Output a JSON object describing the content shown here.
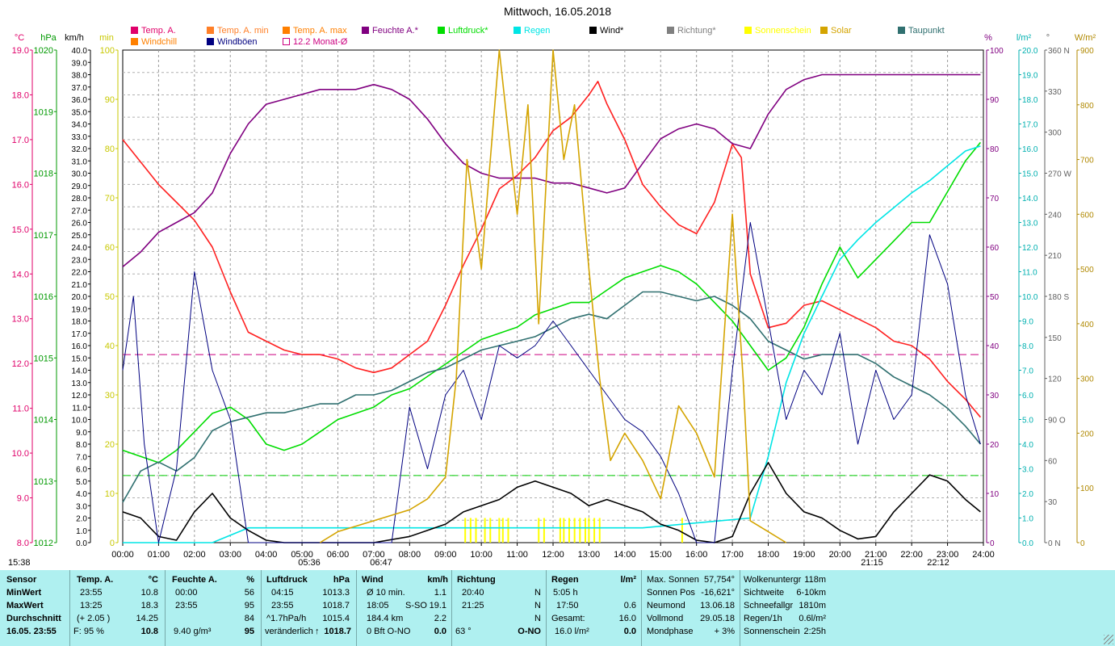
{
  "title": "Mittwoch, 16.05.2018",
  "colors": {
    "temp": "#ff2020",
    "temp_min": "#ff7f27",
    "temp_max": "#ff7f00",
    "windchill": "#ff8000",
    "humidity": "#800080",
    "pressure": "#00dd00",
    "rain": "#00e5e5",
    "wind": "#000000",
    "gust": "#000080",
    "direction": "#808080",
    "sunshine": "#ffff00",
    "solar": "#d4a400",
    "dewpoint": "#307070",
    "monthly": "#cc0080"
  },
  "legend": [
    {
      "label": "Temp. A.",
      "color": "#e0006a",
      "style": "box"
    },
    {
      "label": "Temp. A. min",
      "color": "#ff7f27",
      "style": "box"
    },
    {
      "label": "Temp. A. max",
      "color": "#ff7f00",
      "style": "box"
    },
    {
      "label": "Feuchte A.*",
      "color": "#800080",
      "style": "box"
    },
    {
      "label": "Luftdruck*",
      "color": "#00dd00",
      "style": "box"
    },
    {
      "label": "Regen",
      "color": "#00e5e5",
      "style": "box"
    },
    {
      "label": "Wind*",
      "color": "#000000",
      "style": "box"
    },
    {
      "label": "Richtung*",
      "color": "#808080",
      "style": "box"
    },
    {
      "label": "Sonnenschein",
      "color": "#ffff00",
      "style": "box"
    },
    {
      "label": "Solar",
      "color": "#d4a400",
      "style": "box"
    },
    {
      "label": "Taupunkt",
      "color": "#307070",
      "style": "box"
    },
    {
      "label": "Windchill",
      "color": "#ff8000",
      "style": "box"
    },
    {
      "label": "Windböen",
      "color": "#000080",
      "style": "box"
    },
    {
      "label": "12.2 Monat-Ø",
      "color": "#cc0080",
      "style": "outline"
    }
  ],
  "axis_units": {
    "temp": "°C",
    "pressure": "hPa",
    "wind": "km/h",
    "sun_min": "min",
    "humidity": "%",
    "rain": "l/m²",
    "direction": "°",
    "solar": "W/m²"
  },
  "time_below": {
    "left": "15:38",
    "sunrise": "05:36",
    "twilight": "06:47",
    "evening": "21:15",
    "sunset": "22:12"
  },
  "chart_data": {
    "type": "line",
    "x_ticks": [
      "00:00",
      "01:00",
      "02:00",
      "03:00",
      "04:00",
      "05:00",
      "06:00",
      "07:00",
      "08:00",
      "09:00",
      "10:00",
      "11:00",
      "12:00",
      "13:00",
      "14:00",
      "15:00",
      "16:00",
      "17:00",
      "18:00",
      "19:00",
      "20:00",
      "21:00",
      "22:00",
      "23:00",
      "24:00"
    ],
    "axes": {
      "temp": {
        "min": 8,
        "max": 19,
        "step": 1,
        "ticks": [
          "8.0",
          "9.0",
          "10.0",
          "11.0",
          "12.0",
          "13.0",
          "14.0",
          "15.0",
          "16.0",
          "17.0",
          "18.0",
          "19.0"
        ]
      },
      "pressure": {
        "min": 1012,
        "max": 1020,
        "ticks": [
          "1012",
          "1013",
          "1014",
          "1015",
          "1016",
          "1017",
          "1018",
          "1019",
          "1020"
        ]
      },
      "wind": {
        "min": 0,
        "max": 40,
        "step": 1
      },
      "sun_min": {
        "min": 0,
        "max": 100,
        "ticks": [
          "0",
          "10",
          "20",
          "30",
          "40",
          "50",
          "60",
          "70",
          "80",
          "90",
          "100"
        ]
      },
      "humidity": {
        "min": 0,
        "max": 100,
        "ticks": [
          "0",
          "10",
          "20",
          "30",
          "40",
          "50",
          "60",
          "70",
          "80",
          "90",
          "100"
        ]
      },
      "rain": {
        "min": 0,
        "max": 20,
        "ticks": [
          "0.0",
          "1.0",
          "2.0",
          "3.0",
          "4.0",
          "5.0",
          "6.0",
          "7.0",
          "8.0",
          "9.0",
          "10.0",
          "11.0",
          "12.0",
          "13.0",
          "14.0",
          "15.0",
          "16.0",
          "17.0",
          "18.0",
          "19.0",
          "20.0"
        ]
      },
      "direction": {
        "min": 0,
        "max": 360,
        "ticks": [
          "0 N",
          "30",
          "60",
          "90 O",
          "120",
          "150",
          "180 S",
          "210",
          "240",
          "270 W",
          "300",
          "330",
          "360 N"
        ]
      },
      "solar": {
        "min": 0,
        "max": 900,
        "ticks": [
          "0",
          "100",
          "200",
          "300",
          "400",
          "500",
          "600",
          "700",
          "800",
          "900"
        ]
      }
    },
    "monthly_avg_temp": 12.2,
    "ref_line_temp": 9.5,
    "series": [
      {
        "name": "Temp. A.",
        "axis": "temp",
        "color": "#ff2020",
        "x": [
          0,
          0.5,
          1,
          1.5,
          2,
          2.5,
          3,
          3.5,
          4,
          4.5,
          5,
          5.5,
          6,
          6.5,
          7,
          7.5,
          8,
          8.5,
          9,
          9.5,
          10,
          10.5,
          11,
          11.5,
          12,
          12.5,
          13,
          13.25,
          13.5,
          14,
          14.5,
          15,
          15.5,
          16,
          16.5,
          17,
          17.25,
          17.5,
          18,
          18.5,
          19,
          19.5,
          20,
          20.5,
          21,
          21.5,
          22,
          22.5,
          23,
          23.5,
          23.92
        ],
        "y": [
          17.0,
          16.5,
          16.0,
          15.6,
          15.2,
          14.6,
          13.6,
          12.7,
          12.5,
          12.3,
          12.2,
          12.2,
          12.1,
          11.9,
          11.8,
          11.9,
          12.2,
          12.5,
          13.3,
          14.2,
          15.0,
          15.9,
          16.2,
          16.6,
          17.2,
          17.5,
          18.0,
          18.3,
          17.8,
          17.0,
          16.0,
          15.5,
          15.1,
          14.9,
          15.6,
          16.9,
          16.6,
          14.0,
          12.8,
          12.9,
          13.3,
          13.4,
          13.2,
          13.0,
          12.8,
          12.5,
          12.4,
          12.1,
          11.6,
          11.2,
          10.8
        ]
      },
      {
        "name": "Feuchte A.*",
        "axis": "humidity",
        "color": "#800080",
        "x": [
          0,
          0.5,
          1,
          1.5,
          2,
          2.5,
          3,
          3.5,
          4,
          4.5,
          5,
          5.5,
          6,
          6.5,
          7,
          7.5,
          8,
          8.5,
          9,
          9.5,
          10,
          10.5,
          11,
          11.5,
          12,
          12.5,
          13,
          13.5,
          14,
          14.5,
          15,
          15.5,
          16,
          16.5,
          17,
          17.5,
          18,
          18.5,
          19,
          19.5,
          20,
          21,
          22,
          23,
          23.92
        ],
        "y": [
          56,
          59,
          63,
          65,
          67,
          71,
          79,
          85,
          89,
          90,
          91,
          92,
          92,
          92,
          93,
          92,
          90,
          86,
          81,
          77,
          75,
          74,
          74,
          74,
          73,
          73,
          72,
          71,
          72,
          77,
          82,
          84,
          85,
          84,
          81,
          80,
          87,
          92,
          94,
          95,
          95,
          95,
          95,
          95,
          95
        ]
      },
      {
        "name": "Luftdruck*",
        "axis": "pressure",
        "color": "#00dd00",
        "x": [
          0,
          0.5,
          1,
          1.5,
          2,
          2.5,
          3,
          3.5,
          4,
          4.5,
          5,
          5.5,
          6,
          6.5,
          7,
          7.5,
          8,
          8.5,
          9,
          9.5,
          10,
          10.5,
          11,
          11.5,
          12,
          12.5,
          13,
          13.5,
          14,
          14.5,
          15,
          15.5,
          16,
          16.5,
          17,
          17.5,
          18,
          18.5,
          19,
          19.5,
          20,
          20.5,
          21,
          21.5,
          22,
          22.5,
          23,
          23.5,
          23.92
        ],
        "y": [
          1013.5,
          1013.4,
          1013.3,
          1013.5,
          1013.8,
          1014.1,
          1014.2,
          1014.0,
          1013.6,
          1013.5,
          1013.6,
          1013.8,
          1014.0,
          1014.1,
          1014.2,
          1014.4,
          1014.5,
          1014.7,
          1014.9,
          1015.1,
          1015.3,
          1015.4,
          1015.5,
          1015.7,
          1015.8,
          1015.9,
          1015.9,
          1016.1,
          1016.3,
          1016.4,
          1016.5,
          1016.4,
          1016.2,
          1015.9,
          1015.6,
          1015.2,
          1014.8,
          1015.0,
          1015.5,
          1016.2,
          1016.8,
          1016.3,
          1016.6,
          1016.9,
          1017.2,
          1017.2,
          1017.7,
          1018.2,
          1018.5
        ]
      },
      {
        "name": "Taupunkt",
        "axis": "temp",
        "color": "#307070",
        "x": [
          0,
          0.5,
          1,
          1.5,
          2,
          2.5,
          3,
          3.5,
          4,
          4.5,
          5,
          5.5,
          6,
          6.5,
          7,
          7.5,
          8,
          8.5,
          9,
          9.5,
          10,
          10.5,
          11,
          11.5,
          12,
          12.5,
          13,
          13.5,
          14,
          14.5,
          15,
          15.5,
          16,
          16.5,
          17,
          17.5,
          18,
          18.5,
          19,
          19.5,
          20,
          20.5,
          21,
          21.5,
          22,
          22.5,
          23,
          23.5,
          23.92
        ],
        "y": [
          8.9,
          9.6,
          9.8,
          9.6,
          9.9,
          10.5,
          10.7,
          10.8,
          10.9,
          10.9,
          11.0,
          11.1,
          11.1,
          11.3,
          11.3,
          11.4,
          11.6,
          11.8,
          11.9,
          12.1,
          12.3,
          12.4,
          12.5,
          12.6,
          12.8,
          13.0,
          13.1,
          13.0,
          13.3,
          13.6,
          13.6,
          13.5,
          13.4,
          13.5,
          13.3,
          13.0,
          12.5,
          12.3,
          12.1,
          12.2,
          12.2,
          12.2,
          12.0,
          11.7,
          11.5,
          11.3,
          11.0,
          10.6,
          10.2
        ]
      },
      {
        "name": "Regen",
        "axis": "rain",
        "color": "#00e5e5",
        "x": [
          0,
          2.5,
          3.5,
          12,
          14.5,
          17.5,
          18,
          18.5,
          19,
          19.5,
          20,
          20.5,
          21,
          21.5,
          22,
          22.5,
          23,
          23.5,
          23.92
        ],
        "y": [
          0,
          0,
          0.6,
          0.6,
          0.6,
          1.0,
          3.5,
          6.5,
          8.5,
          10.0,
          11.5,
          12.3,
          13.0,
          13.6,
          14.2,
          14.7,
          15.3,
          15.9,
          16.1
        ]
      },
      {
        "name": "Wind*",
        "axis": "wind",
        "color": "#000000",
        "x": [
          0,
          0.5,
          1,
          1.5,
          2,
          2.5,
          3,
          3.5,
          4,
          4.5,
          5,
          7,
          8,
          9,
          9.5,
          10,
          10.5,
          11,
          11.5,
          12,
          12.5,
          13,
          13.5,
          14,
          14.5,
          15,
          15.5,
          16,
          16.5,
          17,
          17.5,
          18,
          18.5,
          19,
          19.5,
          20,
          20.5,
          21,
          21.5,
          22,
          22.5,
          23,
          23.5,
          23.92
        ],
        "y": [
          2.5,
          2.0,
          0.5,
          0.2,
          2.5,
          4.0,
          2.0,
          1.0,
          0.2,
          0,
          0,
          0,
          0.5,
          1.5,
          2.5,
          3.0,
          3.5,
          4.5,
          5.0,
          4.5,
          4.0,
          3.0,
          3.5,
          3.0,
          2.5,
          1.5,
          1.0,
          0.2,
          0,
          0.5,
          4.0,
          6.5,
          4.0,
          2.5,
          2.0,
          1.0,
          0.3,
          0.5,
          2.5,
          4.0,
          5.5,
          5.0,
          3.5,
          2.5
        ]
      },
      {
        "name": "Windböen",
        "axis": "wind",
        "color": "#000080",
        "x": [
          0,
          0.3,
          0.6,
          1,
          1.5,
          2,
          2.5,
          3,
          3.5,
          4,
          5,
          7.5,
          8,
          8.5,
          9,
          9.5,
          10,
          10.5,
          11,
          11.5,
          12,
          12.5,
          13,
          13.5,
          14,
          14.5,
          15,
          15.5,
          16,
          16.5,
          17,
          17.5,
          18,
          18.5,
          19,
          19.5,
          20,
          20.5,
          21,
          21.5,
          22,
          22.5,
          23,
          23.5,
          23.92
        ],
        "y": [
          14,
          20,
          8,
          0,
          6,
          22,
          14,
          10,
          0,
          0,
          0,
          0,
          11,
          6,
          12,
          14,
          10,
          16,
          15,
          16,
          18,
          16,
          14,
          12,
          10,
          9,
          7,
          4,
          0,
          0,
          14,
          26,
          18,
          10,
          14,
          12,
          17,
          8,
          14,
          10,
          12,
          25,
          21,
          12,
          8
        ]
      },
      {
        "name": "Solar",
        "axis": "solar",
        "color": "#d4a400",
        "x": [
          5.5,
          6,
          7,
          8,
          8.5,
          9,
          9.3,
          9.6,
          10,
          10.5,
          11,
          11.3,
          11.6,
          12,
          12.3,
          12.6,
          13,
          13.3,
          13.6,
          14,
          14.5,
          15,
          15.5,
          16,
          16.5,
          17,
          17.3,
          17.5,
          18,
          18.5
        ],
        "y": [
          0,
          20,
          40,
          60,
          80,
          120,
          300,
          700,
          500,
          900,
          600,
          800,
          400,
          900,
          700,
          800,
          500,
          300,
          150,
          200,
          150,
          80,
          250,
          200,
          120,
          600,
          300,
          40,
          20,
          0
        ]
      }
    ],
    "sunshine_bars": {
      "axis": "sun_min",
      "color": "#ffff00",
      "x": [
        9.55,
        9.7,
        9.85,
        10.1,
        10.25,
        10.5,
        10.6,
        10.75,
        11.6,
        11.75,
        12.2,
        12.3,
        12.45,
        12.6,
        12.75,
        12.9,
        13.0,
        13.15,
        13.3,
        15.6
      ],
      "y": [
        5,
        5,
        5,
        5,
        5,
        5,
        5,
        5,
        5,
        5,
        5,
        5,
        5,
        5,
        5,
        5,
        5,
        5,
        5,
        5
      ]
    }
  },
  "panel": {
    "sensor": {
      "header": "Sensor",
      "rows": [
        "MinWert",
        "MaxWert",
        "Durchschnitt"
      ],
      "date": "16.05. 23:55"
    },
    "temp": {
      "header": "Temp. A.",
      "unit": "°C",
      "min_time": "23:55",
      "min_val": "10.8",
      "max_time": "13:25",
      "max_val": "18.3",
      "avg_note": "(+ 2.05 )",
      "avg_val": "14.25",
      "cur_note": "F: 95 %",
      "cur_val": "10.8"
    },
    "humidity": {
      "header": "Feuchte A.",
      "unit": "%",
      "min_time": "00:00",
      "min_val": "56",
      "max_time": "23:55",
      "max_val": "95",
      "avg_val": "84",
      "cur_note": "9.40 g/m³",
      "cur_val": "95"
    },
    "pressure": {
      "header": "Luftdruck",
      "unit": "hPa",
      "min_time": "04:15",
      "min_val": "1013.3",
      "max_time": "23:55",
      "max_val": "1018.7",
      "avg_note": "^1.7hPa/h",
      "avg_val": "1015.4",
      "cur_note": "veränderlich",
      "cur_arrow": "↑",
      "cur_val": "1018.7"
    },
    "wind": {
      "header": "Wind",
      "unit": "km/h",
      "row1_note": "Ø 10 min.",
      "row1_val": "1.1",
      "row2_time": "18:05",
      "row2_note": "S-SO",
      "row2_val": "19.1",
      "row3_note": "184.4 km",
      "row3_val": "2.2",
      "cur_note": "0 Bft O-NO",
      "cur_val": "0.0"
    },
    "direction": {
      "header": "Richtung",
      "row1_time": "20:40",
      "row1_val": "N",
      "row2_time": "21:25",
      "row2_val": "N",
      "row3_val": "N",
      "cur_note": "63 °",
      "cur_val": "O-NO"
    },
    "rain": {
      "header": "Regen",
      "unit": "l/m²",
      "row1_note": "5:05 h",
      "row2_time": "17:50",
      "row2_val": "0.6",
      "row3_note": "Gesamt:",
      "row3_val": "16.0",
      "cur_note": "16.0 l/m²",
      "cur_val": "0.0"
    },
    "astro": [
      {
        "label": "Max. Sonnen",
        "value": "57,754°"
      },
      {
        "label": "Sonnen Pos",
        "value": "-16,621°"
      },
      {
        "label": "Neumond",
        "value": "13.06.18"
      },
      {
        "label": "Vollmond",
        "value": "29.05.18"
      },
      {
        "label": "Mondphase",
        "value": "+ 3%"
      }
    ],
    "weather": [
      {
        "label": "Wolkenuntergr",
        "value": "118m"
      },
      {
        "label": "Sichtweite",
        "value": "6-10km"
      },
      {
        "label": "Schneefallgr",
        "value": "1810m"
      },
      {
        "label": "Regen/1h",
        "value": "0.6l/m²"
      },
      {
        "label": "Sonnenschein",
        "value": "2:25h"
      }
    ]
  }
}
